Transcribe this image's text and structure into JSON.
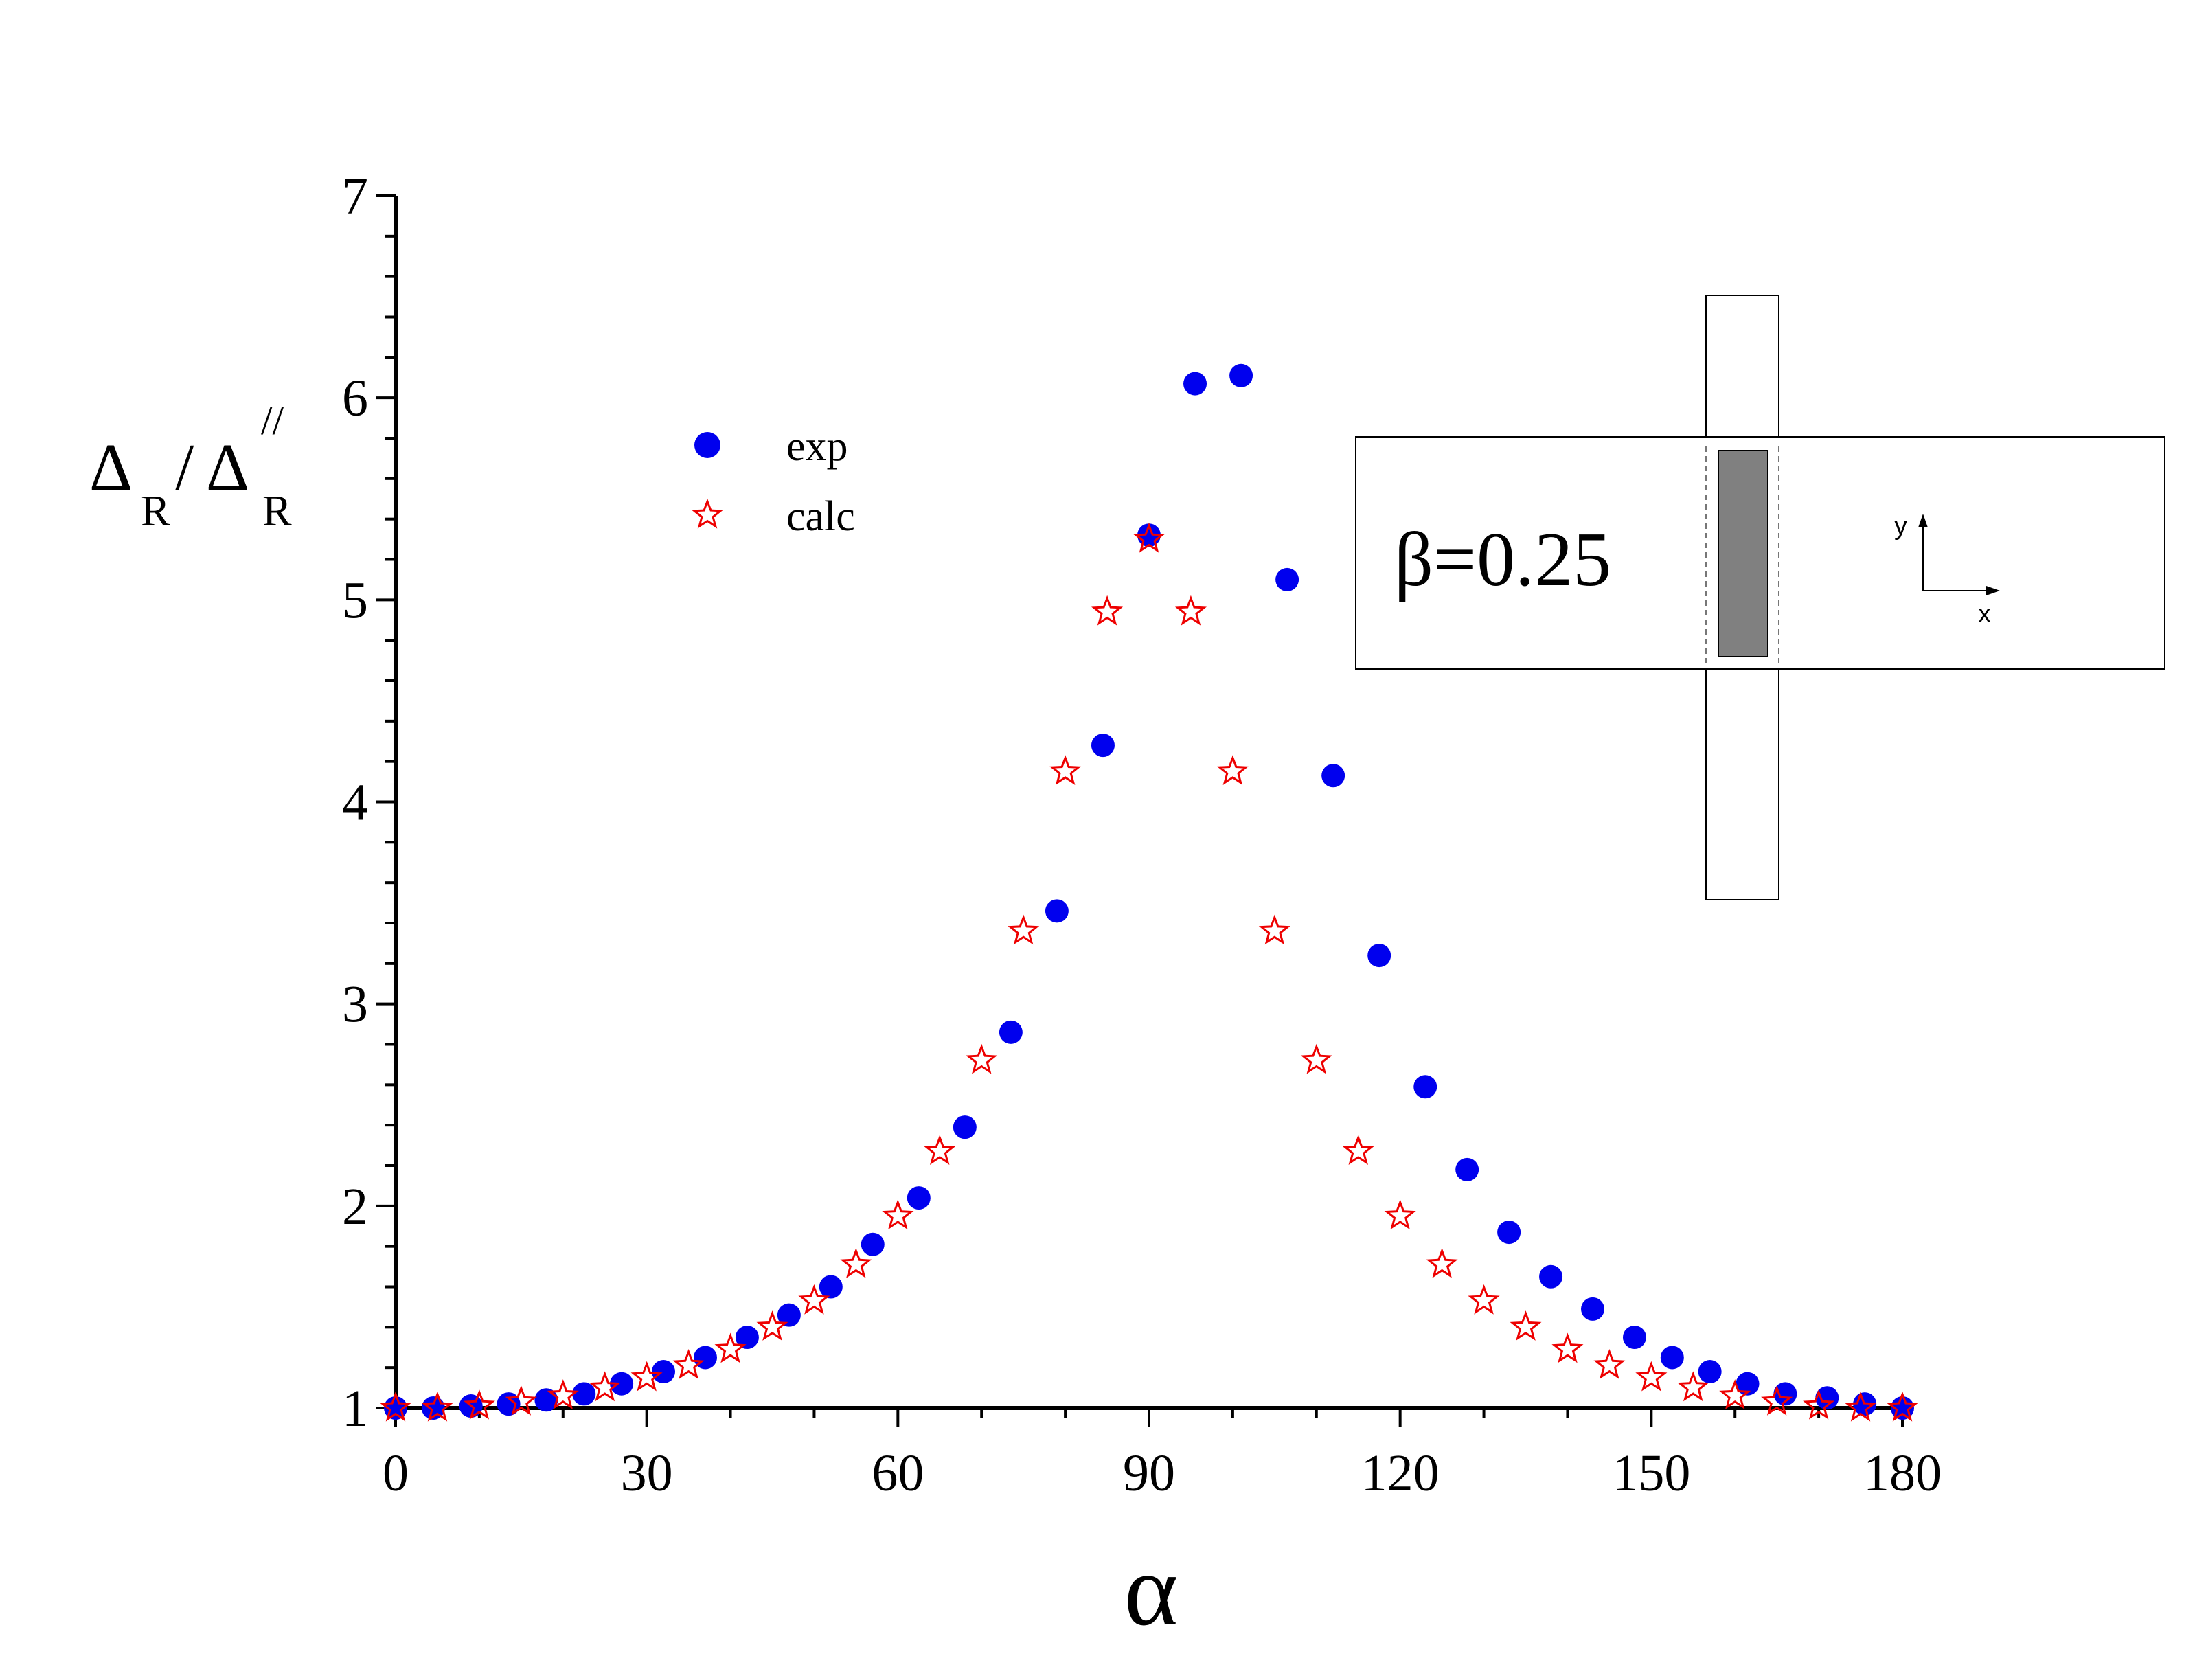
{
  "chart_data": {
    "type": "scatter",
    "xlabel": "α",
    "ylabel": {
      "main": "Δ",
      "sub": "R",
      "slash": "/",
      "main2": "Δ",
      "sup2": "//",
      "sub2": "R"
    },
    "xlim": [
      0,
      180
    ],
    "ylim": [
      1,
      7
    ],
    "xticks": [
      "0",
      "30",
      "60",
      "90",
      "120",
      "150",
      "180"
    ],
    "yticks": [
      "1",
      "2",
      "3",
      "4",
      "5",
      "6",
      "7"
    ],
    "legend_position": "upper-left",
    "series": [
      {
        "name": "exp",
        "marker": "filled-circle",
        "color": "#0000ee",
        "points": [
          [
            0,
            1.0
          ],
          [
            4.5,
            1.0
          ],
          [
            9,
            1.01
          ],
          [
            13.5,
            1.02
          ],
          [
            18,
            1.04
          ],
          [
            22.5,
            1.07
          ],
          [
            27,
            1.12
          ],
          [
            32,
            1.18
          ],
          [
            37,
            1.25
          ],
          [
            42,
            1.35
          ],
          [
            47,
            1.46
          ],
          [
            52,
            1.6
          ],
          [
            57,
            1.81
          ],
          [
            62.5,
            2.04
          ],
          [
            68,
            2.39
          ],
          [
            73.5,
            2.86
          ],
          [
            79,
            3.46
          ],
          [
            84.5,
            4.28
          ],
          [
            90,
            5.32
          ],
          [
            95.5,
            6.07
          ],
          [
            101,
            6.11
          ],
          [
            106.5,
            5.1
          ],
          [
            112,
            4.13
          ],
          [
            117.5,
            3.24
          ],
          [
            123,
            2.59
          ],
          [
            128,
            2.18
          ],
          [
            133,
            1.87
          ],
          [
            138,
            1.65
          ],
          [
            143,
            1.49
          ],
          [
            148,
            1.35
          ],
          [
            152.5,
            1.25
          ],
          [
            157,
            1.18
          ],
          [
            161.5,
            1.12
          ],
          [
            166,
            1.07
          ],
          [
            171,
            1.05
          ],
          [
            175.5,
            1.02
          ],
          [
            180,
            1.0
          ]
        ]
      },
      {
        "name": "calc",
        "marker": "open-star",
        "color": "#ee0000",
        "points": [
          [
            0,
            1.0
          ],
          [
            5,
            1.0
          ],
          [
            10,
            1.01
          ],
          [
            15,
            1.03
          ],
          [
            20,
            1.06
          ],
          [
            25,
            1.1
          ],
          [
            30,
            1.15
          ],
          [
            35,
            1.21
          ],
          [
            40,
            1.29
          ],
          [
            45,
            1.4
          ],
          [
            50,
            1.53
          ],
          [
            55,
            1.71
          ],
          [
            60,
            1.95
          ],
          [
            65,
            2.27
          ],
          [
            70,
            2.72
          ],
          [
            75,
            3.36
          ],
          [
            80,
            4.15
          ],
          [
            85,
            4.94
          ],
          [
            90,
            5.3
          ],
          [
            95,
            4.94
          ],
          [
            100,
            4.15
          ],
          [
            105,
            3.36
          ],
          [
            110,
            2.72
          ],
          [
            115,
            2.27
          ],
          [
            120,
            1.95
          ],
          [
            125,
            1.71
          ],
          [
            130,
            1.53
          ],
          [
            135,
            1.4
          ],
          [
            140,
            1.29
          ],
          [
            145,
            1.21
          ],
          [
            150,
            1.15
          ],
          [
            155,
            1.1
          ],
          [
            160,
            1.06
          ],
          [
            165,
            1.03
          ],
          [
            170,
            1.01
          ],
          [
            175,
            1.0
          ],
          [
            180,
            1.0
          ]
        ]
      }
    ],
    "inset": {
      "annotation": "β=0.25",
      "axis_y_label": "y",
      "axis_x_label": "x",
      "strip_fill": "#808080"
    }
  }
}
